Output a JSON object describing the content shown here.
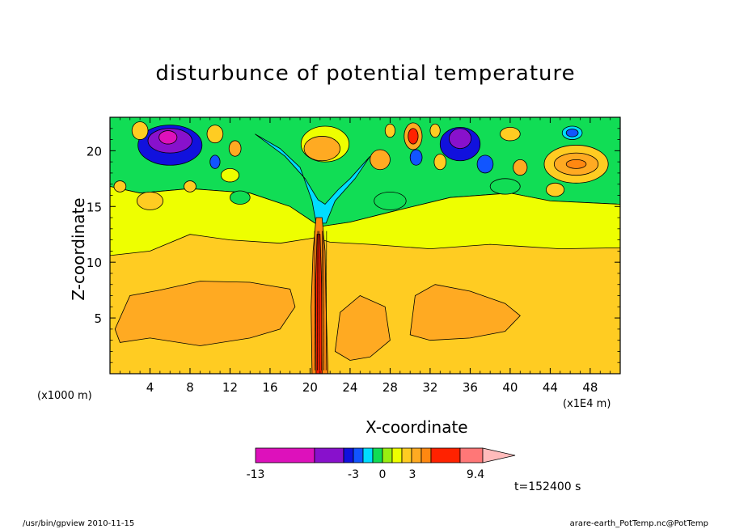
{
  "chart_data": {
    "type": "heatmap",
    "title": "disturbunce of potential temperature",
    "xlabel": "X-coordinate",
    "ylabel": "Z-coordinate",
    "x_unit": "(x1E4 m)",
    "y_unit": "(x1000 m)",
    "xlim": [
      0,
      51
    ],
    "ylim": [
      0,
      23
    ],
    "x_ticks": [
      4,
      8,
      12,
      16,
      20,
      24,
      28,
      32,
      36,
      40,
      44,
      48
    ],
    "y_ticks": [
      5,
      10,
      15,
      20
    ],
    "colorbar": {
      "colors": [
        "#dd11bb",
        "#8811cc",
        "#1111dd",
        "#1155ff",
        "#00ddff",
        "#11dd55",
        "#99ee11",
        "#eeff00",
        "#ffcc22",
        "#ffaa22",
        "#ff8811",
        "#ff2200",
        "#ff7777",
        "#ffbbbb"
      ],
      "labels": [
        {
          "text": "-13",
          "value": -13
        },
        {
          "text": "-3",
          "value": -3
        },
        {
          "text": "0",
          "value": 0
        },
        {
          "text": "3",
          "value": 3
        },
        {
          "text": "9.4",
          "value": 9.4
        }
      ]
    },
    "regions": [
      {
        "label": "upper layer",
        "color": "#eeff00",
        "x": [
          0,
          51
        ],
        "y": [
          11,
          17
        ]
      },
      {
        "label": "lower layer",
        "color": "#ffcc22",
        "x": [
          0,
          51
        ],
        "y": [
          0,
          11
        ]
      },
      {
        "label": "warm pocket left",
        "color": "#ffaa22",
        "x": [
          1,
          18
        ],
        "y": [
          3,
          8
        ]
      },
      {
        "label": "warm pocket right",
        "color": "#ffaa22",
        "x": [
          30,
          41
        ],
        "y": [
          3,
          8
        ]
      },
      {
        "label": "cold core left",
        "color": "#8811cc",
        "x": [
          4,
          8
        ],
        "y": [
          19.5,
          22
        ]
      },
      {
        "label": "cold core right",
        "color": "#8811cc",
        "x": [
          34,
          36
        ],
        "y": [
          20,
          22
        ]
      },
      {
        "label": "warm cell",
        "color": "#ff8811",
        "x": [
          44,
          49
        ],
        "y": [
          17.5,
          20
        ]
      },
      {
        "label": "plume",
        "color": "#ff2200",
        "x": [
          20,
          21.5
        ],
        "y": [
          0,
          14
        ]
      }
    ]
  },
  "annotations": {
    "time_label": "t=152400 s"
  },
  "footer": {
    "left": "/usr/bin/gpview   2010-11-15",
    "right": "arare-earth_PotTemp.nc@PotTemp"
  }
}
